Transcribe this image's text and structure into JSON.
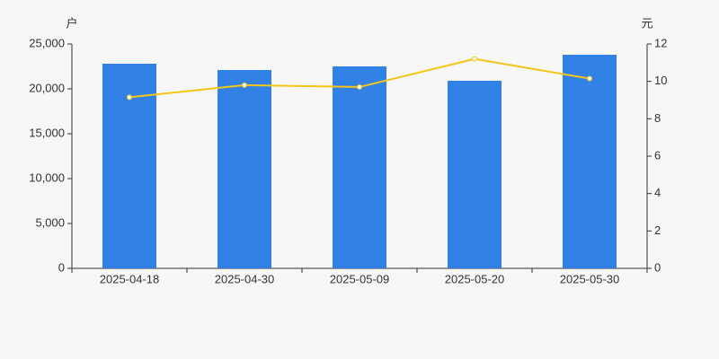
{
  "chart_data": {
    "type": "bar-line",
    "y_label": "户",
    "y2_label": "元",
    "categories": [
      "2025-04-18",
      "2025-04-30",
      "2025-05-09",
      "2025-05-20",
      "2025-05-30"
    ],
    "series": [
      {
        "type": "bar",
        "color": "#3182e4",
        "values": [
          22800,
          22100,
          22500,
          20900,
          23800
        ]
      },
      {
        "type": "line",
        "color": "#f5c518",
        "axis": "y2",
        "values": [
          9.15,
          9.8,
          9.7,
          11.2,
          10.15
        ]
      }
    ],
    "ylim": [
      0,
      25000
    ],
    "yticks": [
      0,
      {
        "value": 5000,
        "label": "5,000"
      },
      {
        "value": 10000,
        "label": "10,000"
      },
      {
        "value": 15000,
        "label": "15,000"
      },
      {
        "value": 20000,
        "label": "20,000"
      },
      {
        "value": 25000,
        "label": "25,000"
      }
    ],
    "y2lim": [
      0,
      12
    ],
    "y2ticks": [
      0,
      2,
      4,
      6,
      8,
      10,
      12
    ]
  }
}
